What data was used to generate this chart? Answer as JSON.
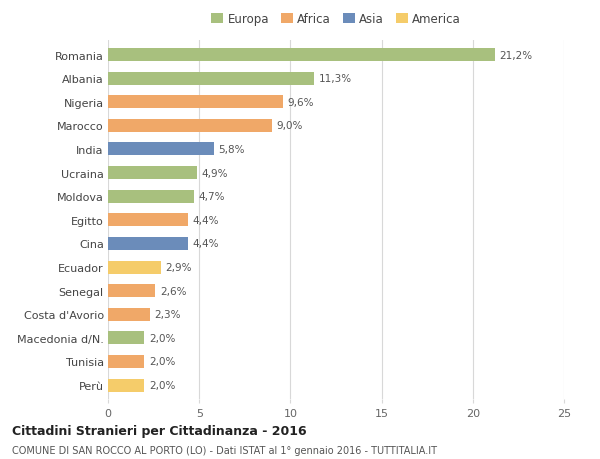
{
  "categories": [
    "Romania",
    "Albania",
    "Nigeria",
    "Marocco",
    "India",
    "Ucraina",
    "Moldova",
    "Egitto",
    "Cina",
    "Ecuador",
    "Senegal",
    "Costa d'Avorio",
    "Macedonia d/N.",
    "Tunisia",
    "Perù"
  ],
  "values": [
    21.2,
    11.3,
    9.6,
    9.0,
    5.8,
    4.9,
    4.7,
    4.4,
    4.4,
    2.9,
    2.6,
    2.3,
    2.0,
    2.0,
    2.0
  ],
  "labels": [
    "21,2%",
    "11,3%",
    "9,6%",
    "9,0%",
    "5,8%",
    "4,9%",
    "4,7%",
    "4,4%",
    "4,4%",
    "2,9%",
    "2,6%",
    "2,3%",
    "2,0%",
    "2,0%",
    "2,0%"
  ],
  "colors": [
    "#a8c07e",
    "#a8c07e",
    "#f0a868",
    "#f0a868",
    "#6b8cba",
    "#a8c07e",
    "#a8c07e",
    "#f0a868",
    "#6b8cba",
    "#f5cc6a",
    "#f0a868",
    "#f0a868",
    "#a8c07e",
    "#f0a868",
    "#f5cc6a"
  ],
  "legend_labels": [
    "Europa",
    "Africa",
    "Asia",
    "America"
  ],
  "legend_colors": [
    "#a8c07e",
    "#f0a868",
    "#6b8cba",
    "#f5cc6a"
  ],
  "title": "Cittadini Stranieri per Cittadinanza - 2016",
  "subtitle": "COMUNE DI SAN ROCCO AL PORTO (LO) - Dati ISTAT al 1° gennaio 2016 - TUTTITALIA.IT",
  "xlim": [
    0,
    25
  ],
  "xticks": [
    0,
    5,
    10,
    15,
    20,
    25
  ],
  "background_color": "#ffffff",
  "grid_color": "#d8d8d8"
}
